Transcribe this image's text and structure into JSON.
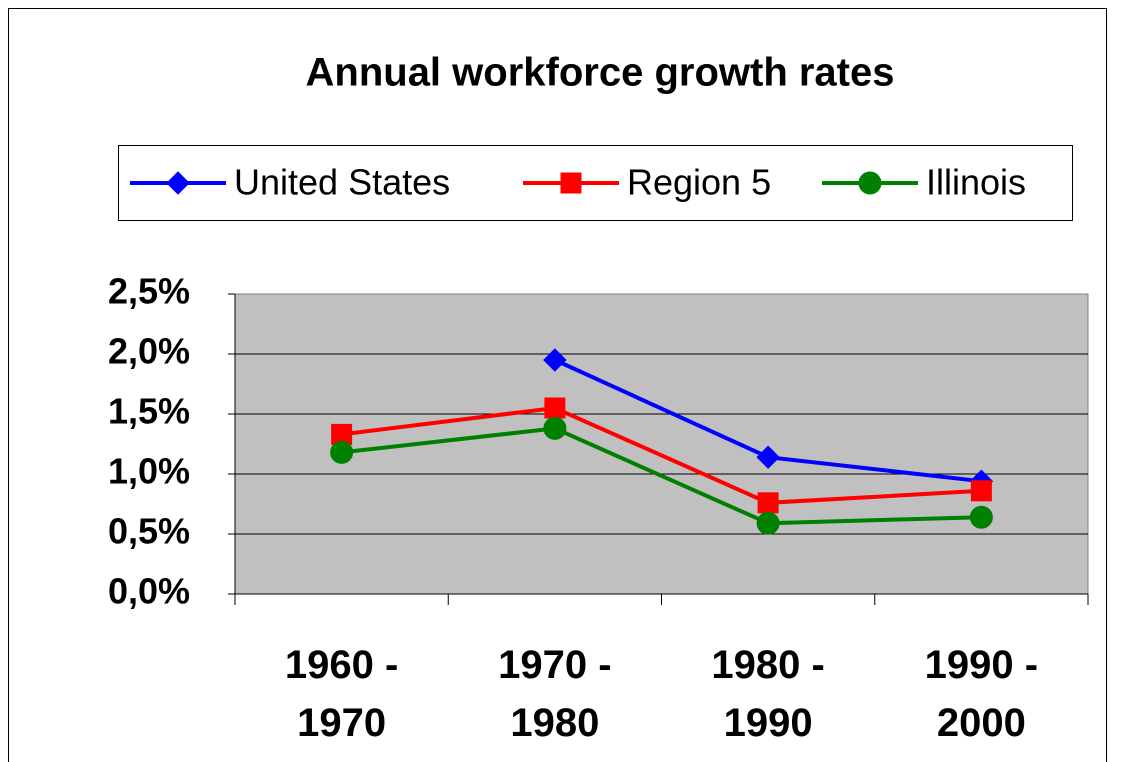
{
  "chart_data": {
    "type": "line",
    "title": "Annual workforce growth rates",
    "categories": [
      "1960 - 1970",
      "1970 - 1980",
      "1980 - 1990",
      "1990 - 2000"
    ],
    "series": [
      {
        "name": "United States",
        "color": "#0000ff",
        "marker": "diamond",
        "values": [
          null,
          1.95,
          1.14,
          0.94
        ]
      },
      {
        "name": "Region 5",
        "color": "#ff0000",
        "marker": "square",
        "values": [
          1.33,
          1.55,
          0.76,
          0.86
        ]
      },
      {
        "name": "Illinois",
        "color": "#008000",
        "marker": "circle",
        "values": [
          1.18,
          1.38,
          0.59,
          0.64
        ]
      }
    ],
    "ylim": [
      0,
      2.5
    ],
    "yticks": [
      {
        "value": 0,
        "label": "0,0%"
      },
      {
        "value": 0.5,
        "label": "0,5%"
      },
      {
        "value": 1,
        "label": "1,0%"
      },
      {
        "value": 1.5,
        "label": "1,5%"
      },
      {
        "value": 2,
        "label": "2,0%"
      },
      {
        "value": 2.5,
        "label": "2,5%"
      }
    ],
    "grid": true,
    "legend": "top"
  }
}
